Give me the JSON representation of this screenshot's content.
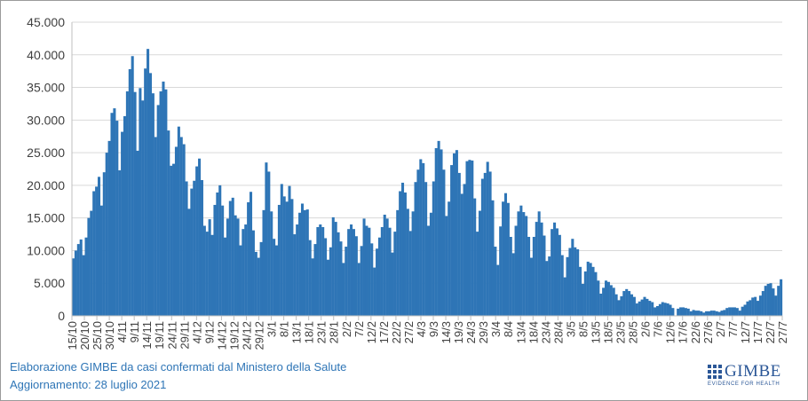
{
  "footer": {
    "line1": "Elaborazione GIMBE da casi confermati dal Ministero della Salute",
    "line2": "Aggiornamento: 28 luglio 2021"
  },
  "logo": {
    "word": "GIMBE",
    "tagline": "EVIDENCE FOR HEALTH",
    "icon": "gimbe-grid-logo-icon",
    "color": "#2b5797"
  },
  "chart_data": {
    "type": "bar",
    "title": "",
    "xlabel": "",
    "ylabel": "",
    "ylim": [
      0,
      45000
    ],
    "yticks": [
      0,
      5000,
      10000,
      15000,
      20000,
      25000,
      30000,
      35000,
      40000,
      45000
    ],
    "ytick_labels": [
      "0",
      "5.000",
      "10.000",
      "15.000",
      "20.000",
      "25.000",
      "30.000",
      "35.000",
      "40.000",
      "45.000"
    ],
    "grid": true,
    "bar_color": "#2e75b6",
    "start_date": "15/10",
    "end_date": "27/7",
    "x_tick_labels": [
      "15/10",
      "20/10",
      "25/10",
      "30/10",
      "4/11",
      "9/11",
      "14/11",
      "19/11",
      "24/11",
      "29/11",
      "4/12",
      "9/12",
      "14/12",
      "19/12",
      "24/12",
      "29/12",
      "3/1",
      "8/1",
      "13/1",
      "18/1",
      "23/1",
      "28/1",
      "2/2",
      "7/2",
      "12/2",
      "17/2",
      "22/2",
      "27/2",
      "4/3",
      "9/3",
      "14/3",
      "19/3",
      "24/3",
      "29/3",
      "3/4",
      "8/4",
      "13/4",
      "18/4",
      "23/4",
      "28/4",
      "3/5",
      "8/5",
      "13/5",
      "18/5",
      "23/5",
      "28/5",
      "2/6",
      "7/6",
      "12/6",
      "17/6",
      "22/6",
      "27/6",
      "2/7",
      "7/7",
      "12/7",
      "17/7",
      "22/7",
      "27/7"
    ],
    "values": [
      8800,
      10000,
      11000,
      11700,
      9300,
      12000,
      15000,
      16100,
      19100,
      19800,
      21300,
      16900,
      22000,
      25000,
      26800,
      31100,
      31800,
      29900,
      22300,
      28200,
      30600,
      34400,
      37800,
      39800,
      34300,
      25300,
      34900,
      33000,
      37900,
      40900,
      37200,
      34100,
      27400,
      32300,
      34400,
      35900,
      34700,
      28400,
      23000,
      23300,
      25900,
      29000,
      27400,
      26300,
      20600,
      16400,
      19500,
      20700,
      22900,
      24100,
      20800,
      13800,
      12900,
      14800,
      12400,
      17000,
      18900,
      20000,
      16900,
      12000,
      14900,
      17600,
      18100,
      15400,
      14900,
      10800,
      13300,
      14000,
      17400,
      19000,
      13100,
      9800,
      8900,
      11300,
      16200,
      23500,
      22100,
      16000,
      11800,
      10800,
      17000,
      20200,
      18300,
      17500,
      19900,
      17900,
      12500,
      14000,
      15800,
      17200,
      16200,
      16300,
      11600,
      8800,
      11000,
      13600,
      14000,
      13600,
      11900,
      8600,
      10500,
      15100,
      14400,
      12800,
      11400,
      8100,
      10600,
      13300,
      14000,
      13300,
      12200,
      8100,
      10700,
      14900,
      13800,
      13500,
      11100,
      7400,
      10300,
      12000,
      13600,
      15500,
      14900,
      13500,
      9700,
      12900,
      16200,
      19100,
      20400,
      18900,
      16400,
      13000,
      16000,
      20500,
      22400,
      24000,
      23400,
      20500,
      13800,
      15800,
      20600,
      25700,
      26800,
      25500,
      22400,
      15300,
      17500,
      23100,
      24900,
      25400,
      21900,
      18700,
      20200,
      23700,
      23900,
      23800,
      18000,
      12900,
      16100,
      21000,
      21900,
      23600,
      22100,
      17700,
      10600,
      7800,
      13700,
      17500,
      18800,
      17300,
      12100,
      9600,
      13800,
      16000,
      16900,
      15900,
      15300,
      12100,
      8900,
      12100,
      14400,
      16000,
      14300,
      12300,
      8400,
      9100,
      13300,
      14300,
      13400,
      12400,
      9300,
      5900,
      9000,
      10400,
      11800,
      10500,
      10200,
      7500,
      4900,
      6800,
      8300,
      8100,
      7500,
      6700,
      5400,
      3400,
      4300,
      5400,
      5200,
      4700,
      4300,
      3300,
      2400,
      3000,
      3800,
      4100,
      3800,
      3300,
      2900,
      1900,
      2200,
      2500,
      2900,
      2600,
      2300,
      2100,
      1300,
      1500,
      1800,
      2100,
      2000,
      1900,
      1700,
      1200,
      0,
      1100,
      1300,
      1300,
      1200,
      1100,
      700,
      900,
      800,
      800,
      700,
      500,
      700,
      700,
      800,
      800,
      700,
      600,
      800,
      900,
      1200,
      1300,
      1300,
      1300,
      1200,
      800,
      1400,
      1700,
      2200,
      2400,
      2800,
      2900,
      2300,
      3100,
      3800,
      4600,
      4900,
      5000,
      4200,
      3100,
      4600,
      5600
    ]
  }
}
